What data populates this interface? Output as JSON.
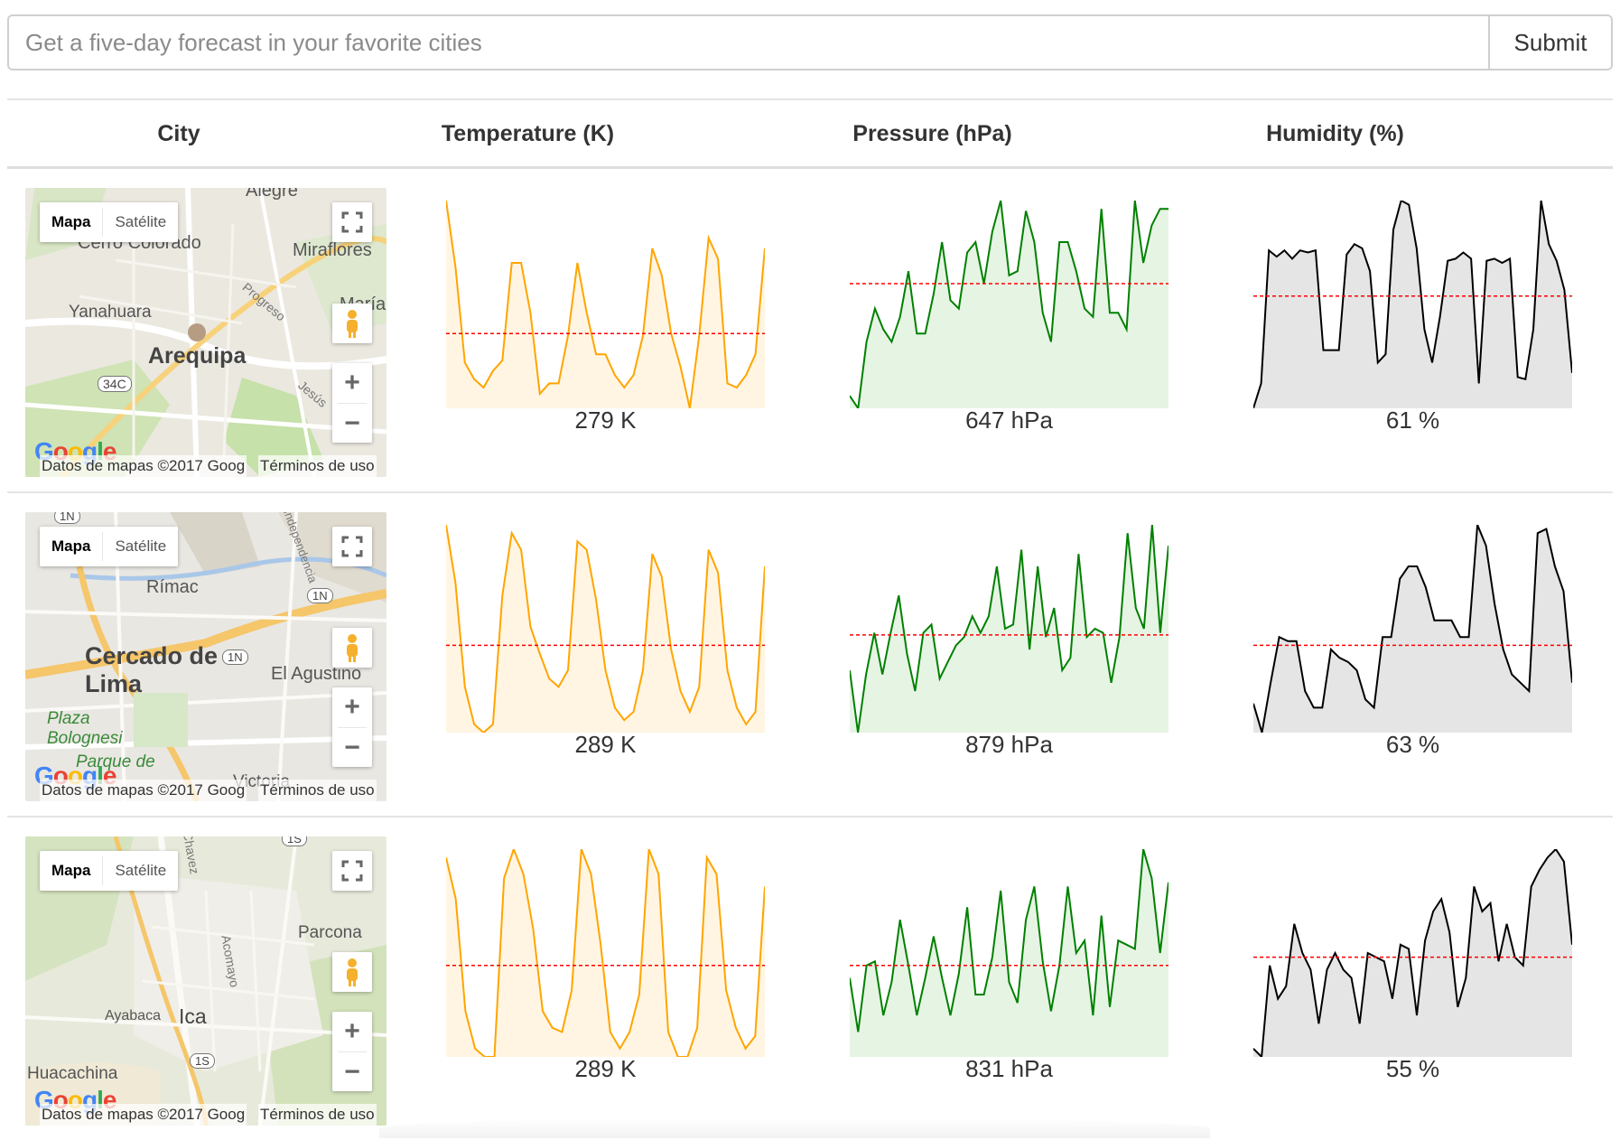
{
  "search": {
    "placeholder": "Get a five-day forecast in your favorite cities",
    "value": "",
    "submit_label": "Submit"
  },
  "table": {
    "headers": [
      "City",
      "Temperature (K)",
      "Pressure (hPa)",
      "Humidity (%)"
    ]
  },
  "map_ui": {
    "map_label": "Mapa",
    "satellite_label": "Satélite",
    "zoom_in": "+",
    "zoom_out": "−",
    "attribution": "Datos de mapas ©2017 Goog",
    "terms": "Términos de uso",
    "logo": "Google"
  },
  "colors": {
    "temperature_line": "#ffa500",
    "temperature_fill": "#fff5e2",
    "pressure_line": "#008000",
    "pressure_fill": "#e6f4e4",
    "humidity_line": "#000000",
    "humidity_fill": "#e5e5e5",
    "average_line": "#ff0000"
  },
  "rows": [
    {
      "city": "Arequipa",
      "map_labels": [
        "Cerro Colorado",
        "Miraflores",
        "Yanahuara",
        "Arequipa",
        "34C",
        "Progreso",
        "Jesús",
        "Alegre",
        "María"
      ],
      "temperature_avg": "279 K",
      "pressure_avg": "647 hPa",
      "humidity_avg": "61 %"
    },
    {
      "city": "Lima",
      "map_labels": [
        "Rímac",
        "Cercado de Lima",
        "El Agustino",
        "Plaza Bolognesi",
        "Parque de",
        "1N",
        "1N",
        "1N",
        "Independencia",
        "Victoria"
      ],
      "temperature_avg": "289 K",
      "pressure_avg": "879 hPa",
      "humidity_avg": "63 %"
    },
    {
      "city": "Ica",
      "map_labels": [
        "Parcona",
        "Ayabaca",
        "Ica",
        "Huacachina",
        "Acomayo",
        "Chavez",
        "1S",
        "1S"
      ],
      "temperature_avg": "289 K",
      "pressure_avg": "831 hPa",
      "humidity_avg": "55 %"
    }
  ],
  "chart_data": [
    {
      "type": "area",
      "row": 0,
      "metric": "temperature",
      "title": "",
      "values": [
        100,
        68,
        22,
        14,
        10,
        18,
        23,
        70,
        70,
        46,
        7,
        12,
        12,
        35,
        70,
        46,
        26,
        26,
        16,
        10,
        16,
        35,
        77,
        64,
        36,
        20,
        0,
        35,
        82,
        72,
        12,
        10,
        16,
        26,
        77
      ],
      "average_pct": 36
    },
    {
      "type": "area",
      "row": 0,
      "metric": "pressure",
      "title": "",
      "values": [
        6,
        0,
        32,
        48,
        38,
        32,
        44,
        66,
        36,
        36,
        55,
        80,
        52,
        48,
        75,
        80,
        60,
        85,
        100,
        64,
        66,
        95,
        80,
        46,
        32,
        80,
        80,
        66,
        48,
        44,
        96,
        46,
        46,
        38,
        100,
        70,
        88,
        96,
        96
      ],
      "average_pct": 60
    },
    {
      "type": "area",
      "row": 0,
      "metric": "humidity",
      "title": "",
      "values": [
        0,
        12,
        76,
        73,
        76,
        72,
        76,
        75,
        76,
        28,
        28,
        28,
        74,
        79,
        77,
        66,
        22,
        26,
        86,
        100,
        98,
        77,
        38,
        22,
        44,
        71,
        72,
        75,
        72,
        12,
        71,
        72,
        70,
        72,
        15,
        14,
        38,
        100,
        79,
        71,
        57,
        17
      ],
      "average_pct": 54
    },
    {
      "type": "area",
      "row": 1,
      "metric": "temperature",
      "title": "",
      "values": [
        100,
        72,
        22,
        4,
        0,
        4,
        66,
        96,
        88,
        51,
        38,
        26,
        22,
        30,
        92,
        88,
        64,
        30,
        12,
        6,
        10,
        30,
        86,
        75,
        40,
        20,
        10,
        22,
        88,
        77,
        30,
        12,
        4,
        10,
        80
      ],
      "average_pct": 42
    },
    {
      "type": "area",
      "row": 1,
      "metric": "pressure",
      "title": "",
      "values": [
        30,
        0,
        28,
        48,
        28,
        48,
        66,
        38,
        20,
        48,
        52,
        26,
        34,
        42,
        46,
        56,
        48,
        56,
        80,
        50,
        52,
        88,
        40,
        80,
        46,
        60,
        30,
        36,
        86,
        46,
        50,
        48,
        24,
        46,
        96,
        60,
        50,
        100,
        48,
        90
      ],
      "average_pct": 47
    },
    {
      "type": "area",
      "row": 1,
      "metric": "humidity",
      "title": "",
      "values": [
        14,
        0,
        24,
        46,
        44,
        44,
        20,
        12,
        12,
        40,
        36,
        34,
        30,
        16,
        12,
        46,
        46,
        74,
        80,
        80,
        70,
        54,
        54,
        54,
        46,
        46,
        100,
        90,
        62,
        40,
        28,
        24,
        20,
        96,
        98,
        80,
        68,
        24
      ],
      "average_pct": 42
    },
    {
      "type": "area",
      "row": 2,
      "metric": "temperature",
      "title": "",
      "values": [
        96,
        76,
        22,
        4,
        0,
        0,
        86,
        100,
        88,
        62,
        22,
        14,
        12,
        32,
        100,
        88,
        54,
        12,
        4,
        12,
        30,
        100,
        88,
        12,
        0,
        0,
        14,
        96,
        88,
        32,
        14,
        4,
        10,
        82
      ],
      "average_pct": 44
    },
    {
      "type": "area",
      "row": 2,
      "metric": "pressure",
      "title": "",
      "values": [
        38,
        12,
        44,
        46,
        20,
        36,
        66,
        44,
        20,
        38,
        58,
        38,
        20,
        40,
        72,
        30,
        30,
        48,
        80,
        36,
        26,
        66,
        82,
        46,
        22,
        44,
        82,
        50,
        56,
        20,
        68,
        24,
        56,
        54,
        52,
        100,
        86,
        50,
        84
      ],
      "average_pct": 44
    },
    {
      "type": "area",
      "row": 2,
      "metric": "humidity",
      "title": "",
      "values": [
        4,
        0,
        44,
        28,
        34,
        64,
        50,
        42,
        16,
        42,
        50,
        42,
        38,
        16,
        50,
        48,
        46,
        28,
        54,
        52,
        20,
        56,
        70,
        76,
        60,
        24,
        38,
        82,
        70,
        74,
        46,
        64,
        48,
        44,
        82,
        90,
        96,
        100,
        94,
        54
      ],
      "average_pct": 48
    }
  ]
}
